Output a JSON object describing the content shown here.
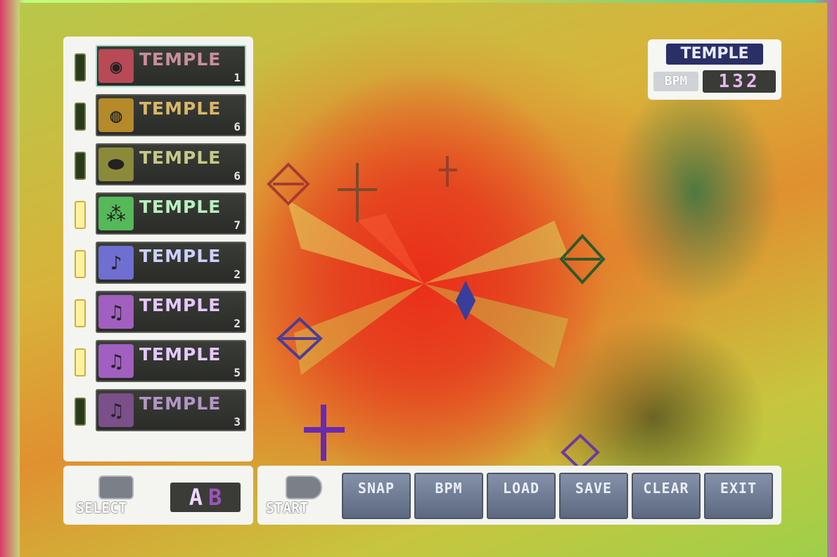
{
  "tracks": [
    {
      "name": "TEMPLE",
      "number": "1",
      "icon": "speaker-icon",
      "led_on": false,
      "icon_color": "#b74a55"
    },
    {
      "name": "TEMPLE",
      "number": "6",
      "icon": "drum-icon",
      "led_on": false,
      "icon_color": "#b58a2a"
    },
    {
      "name": "TEMPLE",
      "number": "6",
      "icon": "cymbal-icon",
      "led_on": false,
      "icon_color": "#8b8a3a"
    },
    {
      "name": "TEMPLE",
      "number": "7",
      "icon": "bubbles-icon",
      "led_on": true,
      "icon_color": "#56b858"
    },
    {
      "name": "TEMPLE",
      "number": "2",
      "icon": "guitar-icon",
      "led_on": true,
      "icon_color": "#6e6fd0"
    },
    {
      "name": "TEMPLE",
      "number": "2",
      "icon": "music-note-icon",
      "led_on": true,
      "icon_color": "#a15fc0"
    },
    {
      "name": "TEMPLE",
      "number": "5",
      "icon": "music-note-icon",
      "led_on": true,
      "icon_color": "#a15fc0"
    },
    {
      "name": "TEMPLE",
      "number": "3",
      "icon": "music-note-icon",
      "led_on": false,
      "icon_color": "#7b4f8a"
    }
  ],
  "info": {
    "title": "TEMPLE",
    "bpm_label": "BPM",
    "bpm_value": "132"
  },
  "select_panel": {
    "label": "SELECT",
    "a": "A",
    "b": "B"
  },
  "command_panel": {
    "start_label": "START",
    "buttons": [
      "SNAP",
      "BPM",
      "LOAD",
      "SAVE",
      "CLEAR",
      "EXIT"
    ]
  },
  "colors": {
    "panel": "#f4f4f0",
    "card": "#2f302c",
    "button": "#6f7b92"
  }
}
